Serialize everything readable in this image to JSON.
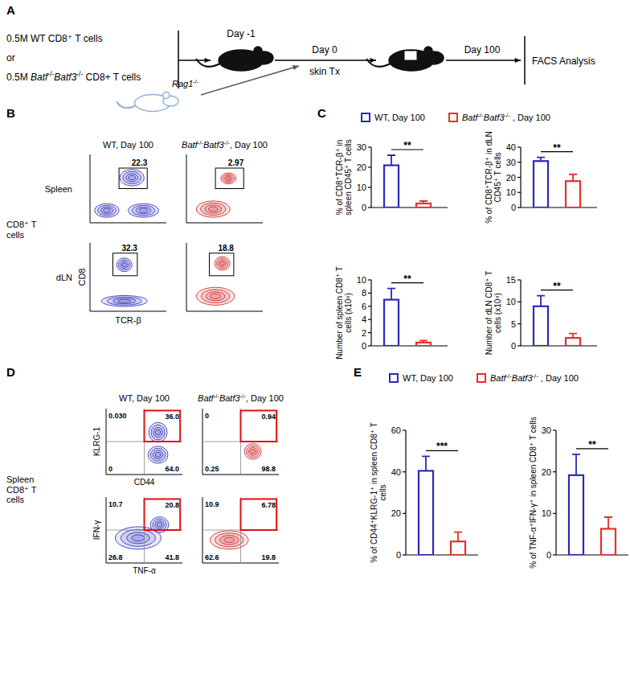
{
  "panels": [
    "A",
    "B",
    "C",
    "D",
    "E"
  ],
  "schematic": {
    "donor_lines": [
      "0.5M WT CD8⁺ T cells",
      "or",
      "0.5M Batf-/-Batf3-/- CD8+ T cells"
    ],
    "day_transfer": "Day -1",
    "day_graft": "Day 0",
    "graft": "skin Tx",
    "graft_donor": "Rag1-/-",
    "day_end": "Day 100",
    "readout": "FACS Analysis"
  },
  "flow_b": {
    "columns": [
      "WT, Day 100",
      "Batf-/-Batf3-/-, Day 100"
    ],
    "row_group": "CD8⁺ T cells",
    "rows": [
      "Spleen",
      "dLN"
    ],
    "y_label": "CD8",
    "x_label": "TCR-β",
    "gates": [
      [
        "22.3",
        "2.97"
      ],
      [
        "32.3",
        "18.8"
      ]
    ]
  },
  "flow_d": {
    "columns": [
      "WT, Day 100",
      "Batf-/-Batf3-/-, Day 100"
    ],
    "row_group": "Spleen CD8⁺ T cells",
    "rows": [
      {
        "y_label": "KLRG-1",
        "x_label": "CD44",
        "quadrants": [
          [
            "0.030",
            "36.0",
            "0",
            "64.0"
          ],
          [
            "0",
            "0.94",
            "0.25",
            "98.8"
          ]
        ]
      },
      {
        "y_label": "IFN-γ",
        "x_label": "TNF-α",
        "quadrants": [
          [
            "10.7",
            "20.8",
            "26.8",
            "41.8"
          ],
          [
            "10.9",
            "6.78",
            "62.6",
            "19.8"
          ]
        ]
      }
    ]
  },
  "chart_data": [
    {
      "type": "bar",
      "categories": [
        null
      ],
      "ylabel": "% of CD8⁺TCR-β⁺ in spleen CD45⁺ T cells",
      "ylim": [
        0,
        30
      ],
      "yticks": [
        0,
        10,
        20,
        30
      ],
      "tick_labels": "y",
      "legend": "top",
      "annotations": [
        "**"
      ],
      "series": [
        {
          "name": "WT, Day 100",
          "color": "#2a2ab8",
          "values": [
            21
          ],
          "errors": [
            5
          ]
        },
        {
          "name": "Batf-/-Batf3-/- , Day 100",
          "color": "#e3302c",
          "values": [
            2
          ],
          "errors": [
            1.2
          ]
        }
      ]
    },
    {
      "type": "bar",
      "categories": [
        null
      ],
      "ylabel": "% of CD8⁺TCR-β⁺ in dLN CD45⁺ T cells",
      "ylim": [
        0,
        40
      ],
      "yticks": [
        0,
        10,
        20,
        30,
        40
      ],
      "tick_labels": "y",
      "annotations": [
        "**"
      ],
      "series": [
        {
          "color": "#2a2ab8",
          "values": [
            30.8
          ],
          "errors": [
            2.5
          ]
        },
        {
          "color": "#e3302c",
          "values": [
            17.5
          ],
          "errors": [
            4.5
          ]
        }
      ]
    },
    {
      "type": "bar",
      "categories": [
        null
      ],
      "ylabel": "Number of spleen CD8⁺ T cells (x10⁶)",
      "ylim": [
        0,
        10
      ],
      "yticks": [
        0,
        2,
        4,
        6,
        8,
        10
      ],
      "tick_labels": "y",
      "annotations": [
        "**"
      ],
      "series": [
        {
          "color": "#2a2ab8",
          "values": [
            7
          ],
          "errors": [
            1.7
          ]
        },
        {
          "color": "#e3302c",
          "values": [
            0.5
          ],
          "errors": [
            0.3
          ]
        }
      ]
    },
    {
      "type": "bar",
      "categories": [
        null
      ],
      "ylabel": "Number of dLN CD8⁺ T cells (x10⁴)",
      "ylim": [
        0,
        15
      ],
      "yticks": [
        0,
        5,
        10,
        15
      ],
      "tick_labels": "y",
      "annotations": [
        "**"
      ],
      "series": [
        {
          "color": "#2a2ab8",
          "values": [
            9
          ],
          "errors": [
            2.4
          ]
        },
        {
          "color": "#e3302c",
          "values": [
            1.8
          ],
          "errors": [
            1
          ]
        }
      ]
    },
    {
      "type": "bar",
      "categories": [
        null
      ],
      "ylabel": "% of CD44⁺KLRG-1⁺ in spleen CD8⁺ T cells",
      "ylim": [
        0,
        60
      ],
      "yticks": [
        0,
        20,
        40,
        60
      ],
      "tick_labels": "y",
      "legend": "top",
      "annotations": [
        "***"
      ],
      "series": [
        {
          "name": "WT, Day 100",
          "color": "#2a2ab8",
          "values": [
            40.5
          ],
          "errors": [
            7
          ]
        },
        {
          "name": "Batf-/-Batf3-/- , Day 100",
          "color": "#e3302c",
          "values": [
            6.5
          ],
          "errors": [
            4.5
          ]
        }
      ]
    },
    {
      "type": "bar",
      "categories": [
        null
      ],
      "ylabel": "% of TNF-α⁺IFN-γ⁺ in spleen CD8⁺ T cells",
      "ylim": [
        0,
        30
      ],
      "yticks": [
        0,
        10,
        20,
        30
      ],
      "tick_labels": "y",
      "annotations": [
        "**"
      ],
      "series": [
        {
          "color": "#2a2ab8",
          "values": [
            19.2
          ],
          "errors": [
            5
          ]
        },
        {
          "color": "#e3302c",
          "values": [
            6.3
          ],
          "errors": [
            2.8
          ]
        }
      ]
    }
  ]
}
